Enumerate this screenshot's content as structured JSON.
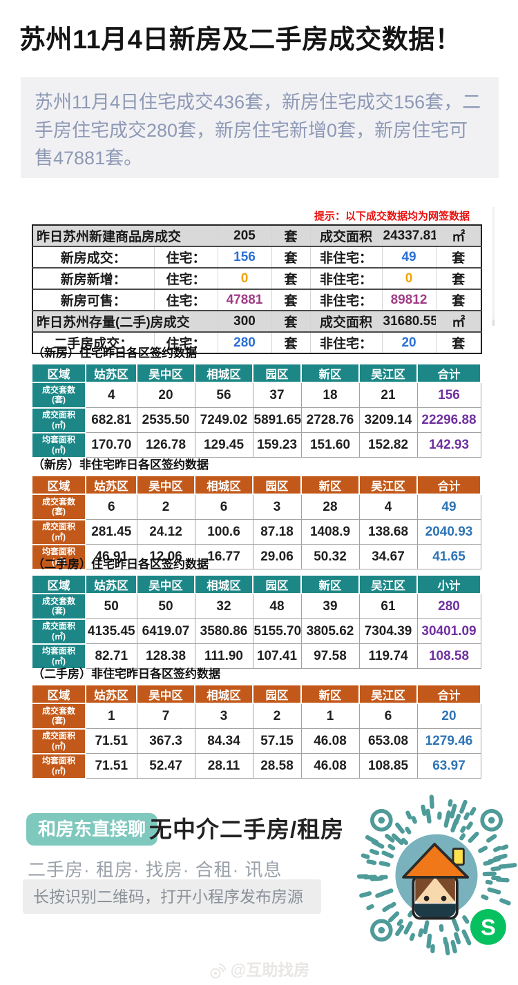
{
  "header": {
    "title": "苏州11月4日新房及二手房成交数据！",
    "summary": "苏州11月4日住宅成交436套，新房住宅成交156套，二手房住宅成交280套，新房住宅新增0套，新房住宅可售47881套。",
    "hint": "提示：以下成交数据均为网签数据"
  },
  "colors": {
    "teal_header": "#1d8787",
    "orange_header": "#c2591a",
    "summary_blue": "#2b6fd4",
    "summary_orange": "#f2a400",
    "summary_magenta": "#a03c85",
    "total_purple": "#7030a0",
    "total_blue": "#2e74b5",
    "hint_red": "#e8120f",
    "badge_teal": "#7ec8be",
    "qr_teal": "#4e9b99",
    "wechat_green": "#07c160"
  },
  "summary_table": {
    "rows": [
      {
        "kind": "section",
        "label": "昨日苏州新建商品房成交",
        "count": "205",
        "count_unit": "套",
        "area_label": "成交面积",
        "area": "24337.81",
        "area_unit": "㎡"
      },
      {
        "kind": "detail",
        "label": "新房成交：",
        "res_label": "住宅：",
        "value": "156",
        "unit": "套",
        "nonres_label": "非住宅：",
        "value2": "49",
        "unit2": "套",
        "color": "blue"
      },
      {
        "kind": "detail",
        "label": "新房新增：",
        "res_label": "住宅：",
        "value": "0",
        "unit": "套",
        "nonres_label": "非住宅：",
        "value2": "0",
        "unit2": "套",
        "color": "orange"
      },
      {
        "kind": "detail",
        "label": "新房可售：",
        "res_label": "住宅：",
        "value": "47881",
        "unit": "套",
        "nonres_label": "非住宅：",
        "value2": "89812",
        "unit2": "套",
        "color": "magenta"
      },
      {
        "kind": "section",
        "label": "昨日苏州存量(二手)房成交",
        "count": "300",
        "count_unit": "套",
        "area_label": "成交面积",
        "area": "31680.55",
        "area_unit": "㎡"
      },
      {
        "kind": "detail",
        "label": "二手房成交：",
        "res_label": "住宅：",
        "value": "280",
        "unit": "套",
        "nonres_label": "非住宅：",
        "value2": "20",
        "unit2": "套",
        "color": "blue"
      }
    ]
  },
  "district_headers": [
    "区域",
    "姑苏区",
    "吴中区",
    "相城区",
    "园区",
    "新区",
    "吴江区"
  ],
  "district_tables": [
    {
      "title": "（新房）住宅昨日各区签约数据",
      "theme": "teal",
      "total_label": "合计",
      "total_color": "purple",
      "rows": [
        {
          "label": "成交套数",
          "unit": "(套)",
          "values": [
            "4",
            "20",
            "56",
            "37",
            "18",
            "21"
          ],
          "total": "156"
        },
        {
          "label": "成交面积",
          "unit": "(㎡)",
          "values": [
            "682.81",
            "2535.50",
            "7249.02",
            "5891.65",
            "2728.76",
            "3209.14"
          ],
          "total": "22296.88"
        },
        {
          "label": "均套面积",
          "unit": "(㎡)",
          "values": [
            "170.70",
            "126.78",
            "129.45",
            "159.23",
            "151.60",
            "152.82"
          ],
          "total": "142.93"
        }
      ]
    },
    {
      "title": "（新房）非住宅昨日各区签约数据",
      "theme": "orange",
      "total_label": "合计",
      "total_color": "blue",
      "rows": [
        {
          "label": "成交套数",
          "unit": "(套)",
          "values": [
            "6",
            "2",
            "6",
            "3",
            "28",
            "4"
          ],
          "total": "49"
        },
        {
          "label": "成交面积",
          "unit": "(㎡)",
          "values": [
            "281.45",
            "24.12",
            "100.6",
            "87.18",
            "1408.9",
            "138.68"
          ],
          "total": "2040.93"
        },
        {
          "label": "均套面积",
          "unit": "(㎡)",
          "values": [
            "46.91",
            "12.06",
            "16.77",
            "29.06",
            "50.32",
            "34.67"
          ],
          "total": "41.65"
        }
      ]
    },
    {
      "title": "（二手房）住宅昨日各区签约数据",
      "theme": "teal",
      "total_label": "小计",
      "total_color": "purple",
      "rows": [
        {
          "label": "成交套数",
          "unit": "(套)",
          "values": [
            "50",
            "50",
            "32",
            "48",
            "39",
            "61"
          ],
          "total": "280"
        },
        {
          "label": "成交面积",
          "unit": "(㎡)",
          "values": [
            "4135.45",
            "6419.07",
            "3580.86",
            "5155.70",
            "3805.62",
            "7304.39"
          ],
          "total": "30401.09"
        },
        {
          "label": "均套面积",
          "unit": "(㎡)",
          "values": [
            "82.71",
            "128.38",
            "111.90",
            "107.41",
            "97.58",
            "119.74"
          ],
          "total": "108.58"
        }
      ]
    },
    {
      "title": "（二手房）非住宅昨日各区签约数据",
      "theme": "orange",
      "total_label": "合计",
      "total_color": "blue",
      "rows": [
        {
          "label": "成交套数",
          "unit": "(套)",
          "values": [
            "1",
            "7",
            "3",
            "2",
            "1",
            "6"
          ],
          "total": "20"
        },
        {
          "label": "成交面积",
          "unit": "(㎡)",
          "values": [
            "71.51",
            "367.3",
            "84.34",
            "57.15",
            "46.08",
            "653.08"
          ],
          "total": "1279.46"
        },
        {
          "label": "均套面积",
          "unit": "(㎡)",
          "values": [
            "71.51",
            "52.47",
            "28.11",
            "28.58",
            "46.08",
            "108.85"
          ],
          "total": "63.97"
        }
      ]
    }
  ],
  "footer": {
    "badge": "和房东直接聊",
    "headline": "无中介二手房/租房",
    "tags": "二手房· 租房· 找房· 合租· 讯息",
    "qr_tip": "长按识别二维码，打开小程序发布房源",
    "qr_icon": "mini-program-qr-house-logo",
    "watermark": "@互助找房"
  }
}
